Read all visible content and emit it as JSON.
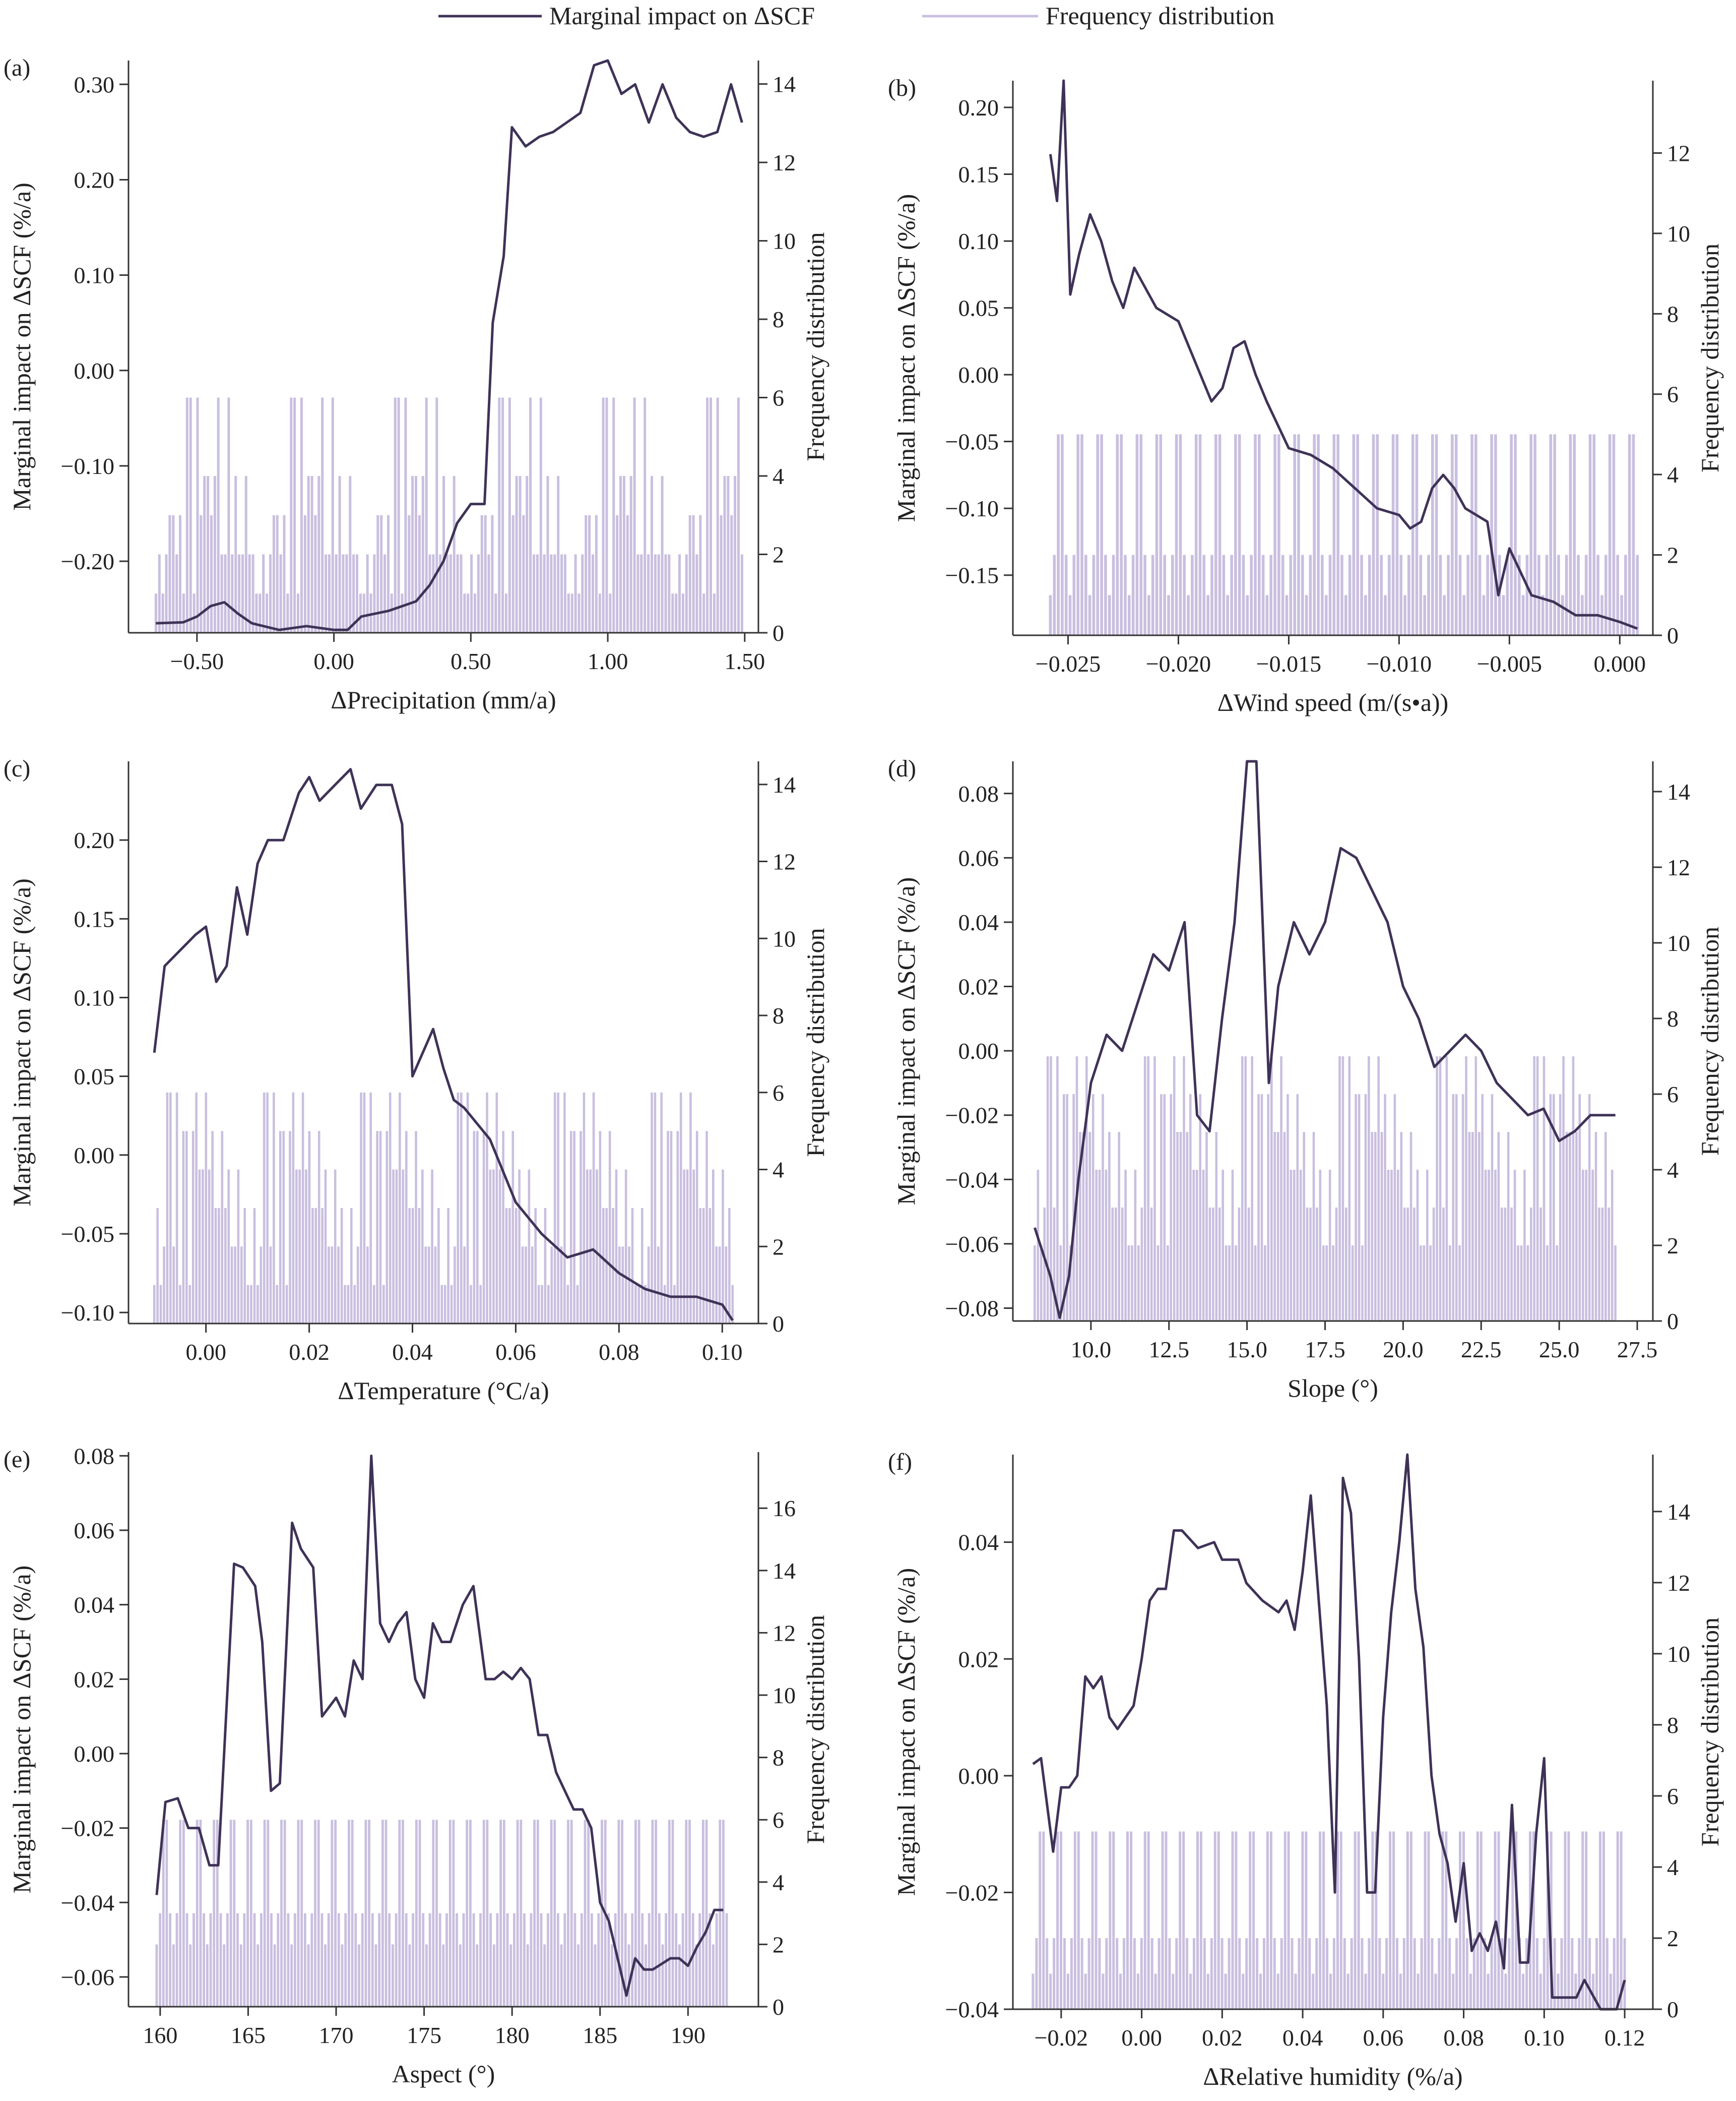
{
  "legend": {
    "line_label": "Marginal impact on ΔSCF",
    "bar_label": "Frequency distribution"
  },
  "colors": {
    "line": "#3f3257",
    "bar": "#c9bfdf",
    "axis": "#333333"
  },
  "chart_data": [
    {
      "panel": "(a)",
      "type": "bar+line",
      "xlabel": "ΔPrecipitation (mm/a)",
      "ylabel": "Marginal impact on ΔSCF (%/a)",
      "y2label": "Frequency distribution",
      "xlim": [
        -0.75,
        1.55
      ],
      "ylim": [
        -0.275,
        0.325
      ],
      "y2lim": [
        0,
        14.6
      ],
      "xticks": [
        -0.5,
        0,
        0.5,
        1.0,
        1.5
      ],
      "xtick_labels": [
        "−0.50",
        "0.00",
        "0.50",
        "1.00",
        "1.50"
      ],
      "yticks": [
        -0.2,
        -0.1,
        0,
        0.1,
        0.2,
        0.3
      ],
      "ytick_labels": [
        "−0.20",
        "−0.10",
        "0.00",
        "0.10",
        "0.20",
        "0.30"
      ],
      "y2ticks": [
        0,
        2,
        4,
        6,
        8,
        10,
        12,
        14
      ],
      "bar_range": [
        -0.65,
        1.49
      ],
      "bar_n": 170,
      "bar_levels": [
        1,
        2,
        2,
        4,
        6,
        3
      ],
      "line": {
        "x": [
          -0.65,
          -0.55,
          -0.5,
          -0.45,
          -0.4,
          -0.35,
          -0.3,
          -0.2,
          -0.1,
          0,
          0.05,
          0.1,
          0.2,
          0.3,
          0.35,
          0.4,
          0.45,
          0.5,
          0.55,
          0.58,
          0.62,
          0.65,
          0.7,
          0.75,
          0.8,
          0.85,
          0.9,
          0.95,
          1.0,
          1.05,
          1.1,
          1.15,
          1.2,
          1.25,
          1.3,
          1.35,
          1.4,
          1.45,
          1.49
        ],
        "y": [
          -0.265,
          -0.264,
          -0.258,
          -0.247,
          -0.243,
          -0.255,
          -0.265,
          -0.272,
          -0.268,
          -0.272,
          -0.272,
          -0.258,
          -0.252,
          -0.242,
          -0.225,
          -0.2,
          -0.16,
          -0.14,
          -0.14,
          0.05,
          0.12,
          0.255,
          0.235,
          0.245,
          0.25,
          0.26,
          0.27,
          0.32,
          0.33,
          0.29,
          0.3,
          0.26,
          0.3,
          0.265,
          0.25,
          0.245,
          0.25,
          0.3,
          0.26
        ]
      }
    },
    {
      "panel": "(b)",
      "type": "bar+line",
      "xlabel": "ΔWind speed (m/(s•a))",
      "ylabel": "Marginal impact on ΔSCF (%/a)",
      "y2label": "Frequency distribution",
      "xlim": [
        -0.0275,
        0.0015
      ],
      "ylim": [
        -0.195,
        0.22
      ],
      "y2lim": [
        0,
        13.8
      ],
      "xticks": [
        -0.025,
        -0.02,
        -0.015,
        -0.01,
        -0.005,
        0
      ],
      "xtick_labels": [
        "−0.025",
        "−0.020",
        "−0.015",
        "−0.010",
        "−0.005",
        "0.000"
      ],
      "yticks": [
        -0.15,
        -0.1,
        -0.05,
        0,
        0.05,
        0.1,
        0.15,
        0.2
      ],
      "ytick_labels": [
        "−0.15",
        "−0.10",
        "−0.05",
        "0.00",
        "0.05",
        "0.10",
        "0.15",
        "0.20"
      ],
      "y2ticks": [
        0,
        2,
        4,
        6,
        8,
        10,
        12
      ],
      "bar_range": [
        -0.0258,
        0.0008
      ],
      "bar_n": 150,
      "bar_levels": [
        1,
        2,
        3,
        4,
        5,
        6,
        8
      ],
      "line": {
        "x": [
          -0.0258,
          -0.0255,
          -0.0252,
          -0.0249,
          -0.0245,
          -0.024,
          -0.0235,
          -0.023,
          -0.0225,
          -0.022,
          -0.021,
          -0.02,
          -0.019,
          -0.0185,
          -0.018,
          -0.0175,
          -0.017,
          -0.0165,
          -0.016,
          -0.015,
          -0.014,
          -0.013,
          -0.012,
          -0.011,
          -0.01,
          -0.0095,
          -0.009,
          -0.0085,
          -0.008,
          -0.0075,
          -0.007,
          -0.006,
          -0.0055,
          -0.005,
          -0.004,
          -0.003,
          -0.002,
          -0.001,
          0.0,
          0.0008
        ],
        "y": [
          0.165,
          0.13,
          0.22,
          0.06,
          0.09,
          0.12,
          0.1,
          0.07,
          0.05,
          0.08,
          0.05,
          0.04,
          0.0,
          -0.02,
          -0.01,
          0.02,
          0.025,
          0.0,
          -0.02,
          -0.055,
          -0.06,
          -0.07,
          -0.085,
          -0.1,
          -0.105,
          -0.115,
          -0.11,
          -0.085,
          -0.075,
          -0.085,
          -0.1,
          -0.11,
          -0.165,
          -0.13,
          -0.165,
          -0.17,
          -0.18,
          -0.18,
          -0.185,
          -0.19
        ]
      }
    },
    {
      "panel": "(c)",
      "type": "bar+line",
      "xlabel": "ΔTemperature (°C/a)",
      "ylabel": "Marginal impact on ΔSCF (%/a)",
      "y2label": "Frequency distribution",
      "xlim": [
        -0.015,
        0.107
      ],
      "ylim": [
        -0.107,
        0.25
      ],
      "y2lim": [
        0,
        14.6
      ],
      "xticks": [
        0,
        0.02,
        0.04,
        0.06,
        0.08,
        0.1
      ],
      "xtick_labels": [
        "0.00",
        "0.02",
        "0.04",
        "0.06",
        "0.08",
        "0.10"
      ],
      "yticks": [
        -0.1,
        -0.05,
        0,
        0.05,
        0.1,
        0.15,
        0.2
      ],
      "ytick_labels": [
        "−0.10",
        "−0.05",
        "0.00",
        "0.05",
        "0.10",
        "0.15",
        "0.20"
      ],
      "y2ticks": [
        0,
        2,
        4,
        6,
        8,
        10,
        12,
        14
      ],
      "bar_range": [
        -0.01,
        0.102
      ],
      "bar_n": 180,
      "bar_levels": [
        1,
        2,
        3,
        4,
        5,
        6
      ],
      "line": {
        "x": [
          -0.01,
          -0.008,
          -0.005,
          -0.002,
          0.0,
          0.002,
          0.004,
          0.006,
          0.008,
          0.01,
          0.012,
          0.015,
          0.018,
          0.02,
          0.022,
          0.025,
          0.028,
          0.03,
          0.033,
          0.036,
          0.038,
          0.04,
          0.042,
          0.044,
          0.046,
          0.048,
          0.05,
          0.055,
          0.06,
          0.065,
          0.07,
          0.075,
          0.08,
          0.085,
          0.09,
          0.095,
          0.1,
          0.102
        ],
        "y": [
          0.065,
          0.12,
          0.13,
          0.14,
          0.145,
          0.11,
          0.12,
          0.17,
          0.14,
          0.185,
          0.2,
          0.2,
          0.23,
          0.24,
          0.225,
          0.235,
          0.245,
          0.22,
          0.235,
          0.235,
          0.21,
          0.05,
          0.065,
          0.08,
          0.055,
          0.035,
          0.03,
          0.01,
          -0.03,
          -0.05,
          -0.065,
          -0.06,
          -0.075,
          -0.085,
          -0.09,
          -0.09,
          -0.095,
          -0.105
        ]
      }
    },
    {
      "panel": "(d)",
      "type": "bar+line",
      "xlabel": "Slope (°)",
      "ylabel": "Marginal impact on ΔSCF (%/a)",
      "y2label": "Frequency distribution",
      "xlim": [
        7.5,
        28.0
      ],
      "ylim": [
        -0.084,
        0.09
      ],
      "y2lim": [
        0,
        14.8
      ],
      "xticks": [
        10,
        12.5,
        15,
        17.5,
        20,
        22.5,
        25,
        27.5
      ],
      "xtick_labels": [
        "10.0",
        "12.5",
        "15.0",
        "17.5",
        "20.0",
        "22.5",
        "25.0",
        "27.5"
      ],
      "yticks": [
        -0.08,
        -0.06,
        -0.04,
        -0.02,
        0,
        0.02,
        0.04,
        0.06,
        0.08
      ],
      "ytick_labels": [
        "−0.08",
        "−0.06",
        "−0.04",
        "−0.02",
        "0.00",
        "0.02",
        "0.04",
        "0.06",
        "0.08"
      ],
      "y2ticks": [
        0,
        2,
        4,
        6,
        8,
        10,
        12,
        14
      ],
      "bar_range": [
        8.2,
        26.8
      ],
      "bar_n": 180,
      "bar_levels": [
        2,
        3,
        4,
        5,
        6,
        7
      ],
      "line": {
        "x": [
          8.2,
          8.7,
          9.0,
          9.3,
          9.6,
          10.0,
          10.5,
          11.0,
          11.5,
          12.0,
          12.5,
          13.0,
          13.4,
          13.8,
          14.2,
          14.6,
          15.0,
          15.3,
          15.7,
          16.0,
          16.5,
          17.0,
          17.5,
          18.0,
          18.5,
          19.0,
          19.5,
          20.0,
          20.5,
          21.0,
          21.5,
          22.0,
          22.5,
          23.0,
          23.5,
          24.0,
          24.5,
          25.0,
          25.5,
          26.0,
          26.8
        ],
        "y": [
          -0.055,
          -0.07,
          -0.083,
          -0.07,
          -0.04,
          -0.01,
          0.005,
          0.0,
          0.015,
          0.03,
          0.025,
          0.04,
          -0.02,
          -0.025,
          0.01,
          0.04,
          0.09,
          0.092,
          -0.01,
          0.02,
          0.04,
          0.03,
          0.04,
          0.063,
          0.06,
          0.05,
          0.04,
          0.02,
          0.01,
          -0.005,
          0.0,
          0.005,
          0.0,
          -0.01,
          -0.015,
          -0.02,
          -0.018,
          -0.028,
          -0.025,
          -0.02,
          -0.02
        ]
      }
    },
    {
      "panel": "(e)",
      "type": "bar+line",
      "xlabel": "Aspect (°)",
      "ylabel": "Marginal impact on ΔSCF (%/a)",
      "y2label": "Frequency distribution",
      "xlim": [
        158.2,
        194.0
      ],
      "ylim": [
        -0.068,
        0.081
      ],
      "y2lim": [
        0,
        17.8
      ],
      "xticks": [
        160,
        165,
        170,
        175,
        180,
        185,
        190
      ],
      "xtick_labels": [
        "160",
        "165",
        "170",
        "175",
        "180",
        "185",
        "190"
      ],
      "yticks": [
        -0.06,
        -0.04,
        -0.02,
        0,
        0.02,
        0.04,
        0.06,
        0.08
      ],
      "ytick_labels": [
        "−0.06",
        "−0.04",
        "−0.02",
        "0.00",
        "0.02",
        "0.04",
        "0.06",
        "0.08"
      ],
      "y2ticks": [
        0,
        2,
        4,
        6,
        8,
        10,
        12,
        14,
        16
      ],
      "bar_range": [
        159.8,
        192.2
      ],
      "bar_n": 170,
      "bar_levels": [
        2,
        3,
        4,
        5,
        6,
        7,
        8
      ],
      "line": {
        "x": [
          159.8,
          160.3,
          161.0,
          161.6,
          162.2,
          162.8,
          163.3,
          164.2,
          164.7,
          165.4,
          165.8,
          166.3,
          166.8,
          167.5,
          168.0,
          168.7,
          169.2,
          170.0,
          170.5,
          171.0,
          171.5,
          172.0,
          172.5,
          173.0,
          173.5,
          174.0,
          174.5,
          175.0,
          175.5,
          176.0,
          176.5,
          177.2,
          177.8,
          178.5,
          179.0,
          179.5,
          180.0,
          180.5,
          181.0,
          181.5,
          182.0,
          182.5,
          183.0,
          183.5,
          184.0,
          184.5,
          185.0,
          185.5,
          186.0,
          186.5,
          187.0,
          187.5,
          188.0,
          189.0,
          189.5,
          190.0,
          190.5,
          191.0,
          191.5,
          192.0
        ],
        "y": [
          -0.038,
          -0.013,
          -0.012,
          -0.02,
          -0.02,
          -0.03,
          -0.03,
          0.051,
          0.05,
          0.045,
          0.03,
          -0.01,
          -0.008,
          0.062,
          0.055,
          0.05,
          0.01,
          0.015,
          0.01,
          0.025,
          0.02,
          0.08,
          0.035,
          0.03,
          0.035,
          0.038,
          0.02,
          0.015,
          0.035,
          0.03,
          0.03,
          0.04,
          0.045,
          0.02,
          0.02,
          0.022,
          0.02,
          0.023,
          0.02,
          0.005,
          0.005,
          -0.005,
          -0.01,
          -0.015,
          -0.015,
          -0.02,
          -0.04,
          -0.045,
          -0.055,
          -0.065,
          -0.055,
          -0.058,
          -0.058,
          -0.055,
          -0.055,
          -0.057,
          -0.052,
          -0.048,
          -0.042,
          -0.042
        ]
      }
    },
    {
      "panel": "(f)",
      "type": "bar+line",
      "xlabel": "ΔRelative humidity (%/a)",
      "ylabel": "Marginal impact on ΔSCF (%/a)",
      "y2label": "Frequency distribution",
      "xlim": [
        -0.032,
        0.127
      ],
      "ylim": [
        -0.04,
        0.055
      ],
      "y2lim": [
        0,
        15.6
      ],
      "xticks": [
        -0.02,
        0,
        0.02,
        0.04,
        0.06,
        0.08,
        0.1,
        0.12
      ],
      "xtick_labels": [
        "−0.02",
        "0.00",
        "0.02",
        "0.04",
        "0.06",
        "0.08",
        "0.10",
        "0.12"
      ],
      "yticks": [
        -0.04,
        -0.02,
        0,
        0.02,
        0.04
      ],
      "ytick_labels": [
        "−0.04",
        "−0.02",
        "0.00",
        "0.02",
        "0.04"
      ],
      "y2ticks": [
        0,
        2,
        4,
        6,
        8,
        10,
        12,
        14
      ],
      "bar_range": [
        -0.027,
        0.12
      ],
      "bar_n": 170,
      "bar_levels": [
        1,
        2,
        3,
        4,
        5,
        6,
        8
      ],
      "line": {
        "x": [
          -0.027,
          -0.025,
          -0.022,
          -0.02,
          -0.018,
          -0.016,
          -0.014,
          -0.012,
          -0.01,
          -0.008,
          -0.006,
          -0.004,
          -0.002,
          0.0,
          0.002,
          0.004,
          0.006,
          0.008,
          0.01,
          0.014,
          0.018,
          0.02,
          0.024,
          0.026,
          0.03,
          0.034,
          0.036,
          0.038,
          0.04,
          0.042,
          0.044,
          0.046,
          0.048,
          0.05,
          0.052,
          0.054,
          0.056,
          0.058,
          0.06,
          0.062,
          0.064,
          0.066,
          0.068,
          0.07,
          0.072,
          0.074,
          0.076,
          0.078,
          0.08,
          0.082,
          0.084,
          0.086,
          0.088,
          0.09,
          0.092,
          0.094,
          0.096,
          0.098,
          0.1,
          0.102,
          0.104,
          0.108,
          0.11,
          0.114,
          0.118,
          0.12
        ],
        "y": [
          0.002,
          0.003,
          -0.013,
          -0.002,
          -0.002,
          0.0,
          0.017,
          0.015,
          0.017,
          0.01,
          0.008,
          0.01,
          0.012,
          0.02,
          0.03,
          0.032,
          0.032,
          0.042,
          0.042,
          0.039,
          0.04,
          0.037,
          0.037,
          0.033,
          0.03,
          0.028,
          0.03,
          0.025,
          0.035,
          0.048,
          0.03,
          0.012,
          -0.02,
          0.051,
          0.045,
          0.02,
          -0.02,
          -0.02,
          0.01,
          0.028,
          0.04,
          0.055,
          0.032,
          0.022,
          0.0,
          -0.01,
          -0.015,
          -0.025,
          -0.015,
          -0.03,
          -0.027,
          -0.03,
          -0.025,
          -0.033,
          -0.005,
          -0.032,
          -0.032,
          -0.01,
          0.003,
          -0.038,
          -0.038,
          -0.038,
          -0.035,
          -0.04,
          -0.04,
          -0.035
        ]
      }
    }
  ]
}
